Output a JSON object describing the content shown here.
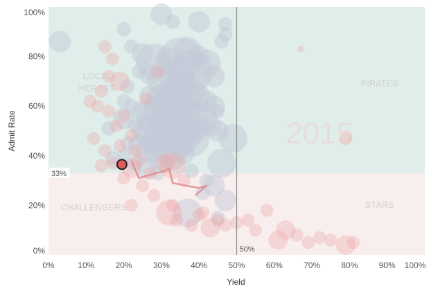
{
  "colors": {
    "upper_band": "#dfeeea",
    "lower_band": "#f8eeed",
    "bubble_gray": "#c3cad8",
    "bubble_red": "#eea5a8",
    "highlight": "#de5a5c",
    "trail": "#e08a8c",
    "ref_line": "#8a8a8a"
  },
  "chart_data": {
    "type": "scatter",
    "xlabel": "Yield",
    "ylabel": "Admit Rate",
    "xlim": [
      0,
      100
    ],
    "ylim": [
      0,
      100
    ],
    "x_ticks": [
      "0%",
      "10%",
      "20%",
      "30%",
      "40%",
      "50%",
      "60%",
      "70%",
      "80%",
      "90%",
      "100%"
    ],
    "y_ticks": [
      "0%",
      "20%",
      "40%",
      "60%",
      "80%",
      "100%"
    ],
    "year_label": "2015",
    "quadrants": {
      "top_left": [
        "LOCAL",
        "HEROES"
      ],
      "top_right": "PIRATES",
      "bottom_left": "CHALLENGERS",
      "bottom_right": "STARS"
    },
    "reference_lines": {
      "admit_rate": {
        "value": 33,
        "label": "33%"
      },
      "yield": {
        "value": 50,
        "label": "50%"
      }
    },
    "highlight_point": {
      "x": 19.5,
      "y": 36.5
    },
    "highlight_trail": [
      [
        22,
        38
      ],
      [
        24,
        31
      ],
      [
        31,
        34
      ],
      [
        32,
        35
      ],
      [
        33,
        29
      ],
      [
        40,
        27
      ],
      [
        42,
        28
      ],
      [
        39,
        24
      ]
    ],
    "series_gray": [
      [
        3,
        86,
        3
      ],
      [
        20,
        91,
        2
      ],
      [
        30,
        97,
        3
      ],
      [
        33,
        94,
        2
      ],
      [
        40,
        94,
        3
      ],
      [
        47,
        93,
        2
      ],
      [
        47,
        89,
        2
      ],
      [
        46,
        86,
        2
      ],
      [
        22,
        84,
        2
      ],
      [
        25,
        81,
        3
      ],
      [
        28,
        78,
        5
      ],
      [
        32,
        78,
        4
      ],
      [
        35,
        79,
        6
      ],
      [
        37,
        82,
        4
      ],
      [
        40,
        80,
        3
      ],
      [
        42,
        77,
        4
      ],
      [
        44,
        72,
        3
      ],
      [
        38,
        74,
        6
      ],
      [
        34,
        72,
        5
      ],
      [
        30,
        70,
        4
      ],
      [
        27,
        73,
        3
      ],
      [
        24,
        74,
        2
      ],
      [
        21,
        68,
        2
      ],
      [
        20,
        62,
        2
      ],
      [
        27,
        64,
        3
      ],
      [
        30,
        63,
        4
      ],
      [
        33,
        63,
        5
      ],
      [
        35,
        65,
        6
      ],
      [
        37,
        67,
        5
      ],
      [
        39,
        64,
        4
      ],
      [
        42,
        62,
        3
      ],
      [
        44,
        60,
        3
      ],
      [
        45,
        58,
        2
      ],
      [
        22,
        60,
        2
      ],
      [
        25,
        58,
        3
      ],
      [
        28,
        56,
        5
      ],
      [
        31,
        57,
        6
      ],
      [
        34,
        55,
        7
      ],
      [
        37,
        53,
        6
      ],
      [
        40,
        55,
        5
      ],
      [
        43,
        52,
        3
      ],
      [
        20,
        55,
        3
      ],
      [
        23,
        52,
        2
      ],
      [
        26,
        50,
        4
      ],
      [
        29,
        49,
        6
      ],
      [
        32,
        47,
        7
      ],
      [
        35,
        49,
        6
      ],
      [
        38,
        47,
        5
      ],
      [
        45,
        50,
        3
      ],
      [
        49,
        47,
        4
      ],
      [
        16,
        51,
        2
      ],
      [
        21,
        45,
        2
      ],
      [
        24,
        44,
        3
      ],
      [
        27,
        43,
        4
      ],
      [
        30,
        42,
        5
      ],
      [
        33,
        40,
        4
      ],
      [
        36,
        41,
        3
      ],
      [
        46,
        37,
        4
      ],
      [
        20,
        40,
        2
      ],
      [
        23,
        37,
        2
      ],
      [
        26,
        35,
        3
      ],
      [
        29,
        33,
        2
      ],
      [
        44,
        28,
        3
      ],
      [
        41,
        25,
        2
      ],
      [
        17,
        39,
        2
      ],
      [
        47,
        22,
        3
      ],
      [
        37,
        17,
        4
      ],
      [
        45,
        15,
        2
      ],
      [
        38,
        34,
        2
      ],
      [
        42,
        30,
        2
      ],
      [
        35,
        44,
        3
      ]
    ],
    "series_red": [
      [
        15,
        84,
        2
      ],
      [
        17,
        79,
        2
      ],
      [
        16,
        72,
        2
      ],
      [
        19,
        70,
        3
      ],
      [
        14,
        66,
        2
      ],
      [
        11,
        62,
        2
      ],
      [
        13,
        60,
        2
      ],
      [
        16,
        58,
        2
      ],
      [
        18,
        52,
        2
      ],
      [
        20,
        56,
        2
      ],
      [
        22,
        48,
        2
      ],
      [
        12,
        47,
        2
      ],
      [
        15,
        42,
        2
      ],
      [
        19,
        44,
        2
      ],
      [
        17,
        37,
        2
      ],
      [
        14,
        36,
        2
      ],
      [
        20,
        31,
        2
      ],
      [
        22,
        35,
        3
      ],
      [
        24,
        38,
        2
      ],
      [
        25,
        28,
        2
      ],
      [
        27,
        33,
        2
      ],
      [
        28,
        24,
        2
      ],
      [
        31,
        37,
        3
      ],
      [
        33,
        36,
        4
      ],
      [
        36,
        30,
        2
      ],
      [
        33,
        20,
        2
      ],
      [
        32,
        17,
        4
      ],
      [
        34,
        14,
        2
      ],
      [
        38,
        12,
        2
      ],
      [
        41,
        17,
        2
      ],
      [
        43,
        11,
        3
      ],
      [
        45,
        14,
        2
      ],
      [
        47,
        12,
        2
      ],
      [
        50,
        13,
        2
      ],
      [
        53,
        14,
        2
      ],
      [
        55,
        10,
        2
      ],
      [
        58,
        18,
        2
      ],
      [
        61,
        6,
        3
      ],
      [
        63,
        10,
        3
      ],
      [
        66,
        8,
        2
      ],
      [
        69,
        5,
        2
      ],
      [
        72,
        7,
        2
      ],
      [
        75,
        6,
        2
      ],
      [
        79,
        4,
        3
      ],
      [
        81,
        5,
        2
      ],
      [
        67,
        83,
        1
      ],
      [
        79,
        47,
        2
      ],
      [
        29,
        74,
        2
      ],
      [
        26,
        63,
        2
      ],
      [
        23,
        42,
        2
      ],
      [
        22,
        20,
        2
      ],
      [
        40,
        16,
        2
      ]
    ]
  }
}
